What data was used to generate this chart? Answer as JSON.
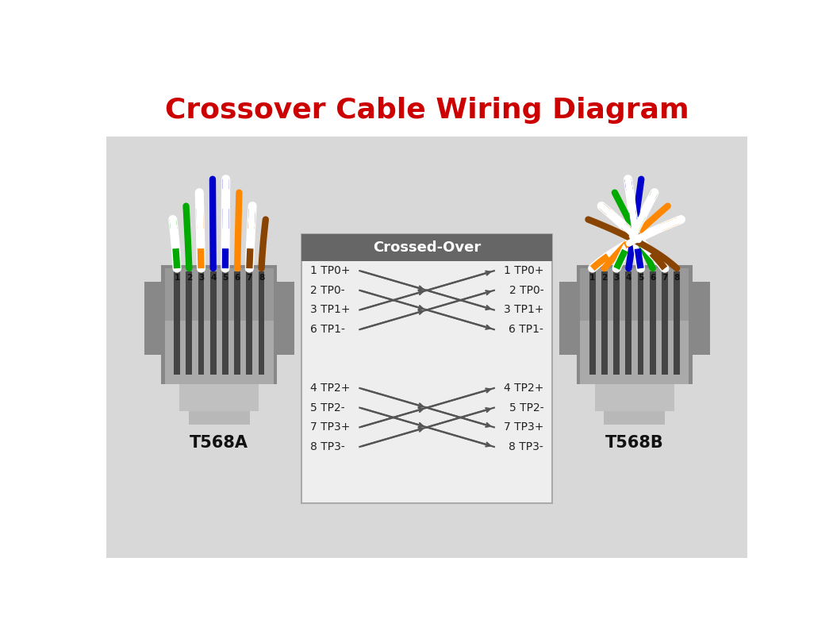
{
  "title": "Crossover Cable Wiring Diagram",
  "title_color": "#cc0000",
  "title_fontsize": 26,
  "bg_color": "#d8d8d8",
  "box_header_color": "#666666",
  "box_bg_color": "#eeeeee",
  "t568a_label": "T568A",
  "t568b_label": "T568B",
  "crossed_label": "Crossed-Over",
  "t568a_pin_colors": [
    "#ffffff",
    "#00aa00",
    "#ffffff",
    "#0000cc",
    "#ffffff",
    "#ff8800",
    "#ffffff",
    "#884400"
  ],
  "t568a_pin_stripes": [
    "#00aa00",
    "#00aa00",
    "#ff8800",
    "#0000cc",
    "#0000cc",
    "#ff8800",
    "#884400",
    "#884400"
  ],
  "t568b_pin_colors": [
    "#ffffff",
    "#ff8800",
    "#ffffff",
    "#0000cc",
    "#ffffff",
    "#00aa00",
    "#ffffff",
    "#884400"
  ],
  "t568b_pin_stripes": [
    "#ff8800",
    "#ff8800",
    "#00aa00",
    "#0000cc",
    "#0000cc",
    "#00aa00",
    "#884400",
    "#884400"
  ],
  "group1_labels_left": [
    "1 TP0+",
    "2 TP0-",
    "3 TP1+",
    "6 TP1-"
  ],
  "group2_labels_left": [
    "4 TP2+",
    "5 TP2-",
    "7 TP3+",
    "8 TP3-"
  ],
  "group1_labels_right": [
    "1 TP0+",
    "2 TP0-",
    "3 TP1+",
    "6 TP1-"
  ],
  "group2_labels_right": [
    "4 TP2+",
    "5 TP2-",
    "7 TP3+",
    "8 TP3-"
  ],
  "cross_map": [
    2,
    3,
    0,
    1
  ],
  "arrow_color": "#555555",
  "connector_outer": "#888888",
  "connector_body": "#aaaaaa",
  "connector_top": "#999999",
  "connector_latch": "#c0c0c0",
  "contact_color": "#444444"
}
